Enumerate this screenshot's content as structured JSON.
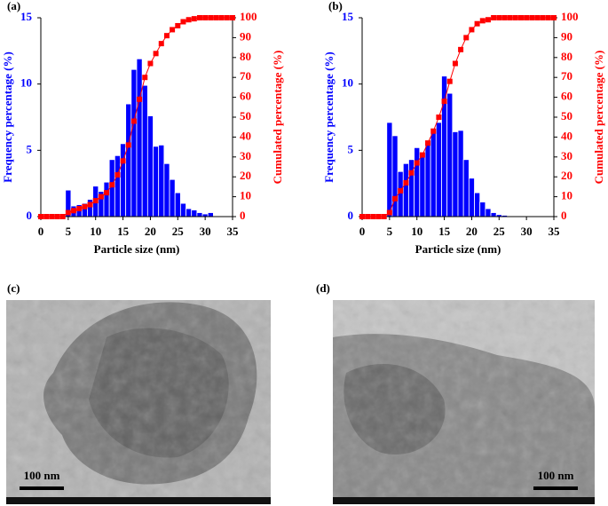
{
  "chart_data": [
    {
      "type": "histogram",
      "panel_label": "(a)",
      "xlabel": "Particle size (nm)",
      "ylabel": "Frequency percentage (%)",
      "y2label": "Cumulated percentage (%)",
      "bins": [
        4.5,
        5.5,
        6.5,
        7.5,
        8.5,
        9.5,
        10.5,
        11.5,
        12.5,
        13.5,
        14.5,
        15.5,
        16.5,
        17.5,
        18.5,
        19.5,
        20.5,
        21.5,
        22.5,
        23.5,
        24.5,
        25.5,
        26.5,
        27.5,
        28.5,
        29.5,
        30.5,
        31.5
      ],
      "values": [
        2.0,
        0.8,
        0.9,
        1.0,
        1.3,
        2.3,
        1.9,
        2.6,
        4.3,
        4.6,
        5.5,
        8.5,
        11.1,
        11.9,
        9.9,
        7.6,
        5.3,
        5.4,
        4.0,
        2.8,
        1.8,
        1.0,
        0.6,
        0.5,
        0.3,
        0.2,
        0.3
      ],
      "color": "#0000ff",
      "cumulative": {
        "axis": "y2",
        "color": "#ff0000",
        "x": [
          0,
          1,
          2,
          3,
          4,
          5,
          6,
          7,
          8,
          9,
          10,
          11,
          12,
          13,
          14,
          15,
          16,
          17,
          18,
          19,
          20,
          21,
          22,
          23,
          24,
          25,
          26,
          27,
          28,
          29,
          30,
          31,
          32,
          33,
          34,
          35
        ],
        "values": [
          0,
          0,
          0,
          0,
          0,
          2,
          3,
          4,
          5,
          6,
          8,
          10,
          12,
          16,
          21,
          28,
          36,
          48,
          59,
          70,
          77,
          82,
          87,
          91,
          94,
          96,
          98,
          99,
          99.5,
          100,
          100,
          100,
          100,
          100,
          100,
          100
        ]
      },
      "xlim": [
        0,
        35
      ],
      "xticks": [
        0,
        5,
        10,
        15,
        20,
        25,
        30,
        35
      ],
      "ylim": [
        0,
        15
      ],
      "yticks": [
        0,
        5,
        10,
        15
      ],
      "y2lim": [
        0,
        100
      ],
      "y2ticks": [
        0,
        10,
        20,
        30,
        40,
        50,
        60,
        70,
        80,
        90,
        100
      ]
    },
    {
      "type": "histogram",
      "panel_label": "(b)",
      "xlabel": "Particle size (nm)",
      "ylabel": "Frequency percentage (%)",
      "y2label": "Cumulated percentage (%)",
      "bins": [
        4.5,
        5.5,
        6.5,
        7.5,
        8.5,
        9.5,
        10.5,
        11.5,
        12.5,
        13.5,
        14.5,
        15.5,
        16.5,
        17.5,
        18.5,
        19.5,
        20.5,
        21.5,
        22.5,
        23.5,
        24.5,
        25.5,
        26.5
      ],
      "values": [
        7.1,
        6.1,
        3.4,
        4.0,
        4.3,
        5.2,
        4.6,
        5.6,
        6.6,
        7.1,
        10.6,
        9.3,
        6.4,
        6.5,
        4.3,
        2.9,
        1.8,
        1.1,
        0.6,
        0.3,
        0.15,
        0.1
      ],
      "color": "#0000ff",
      "cumulative": {
        "axis": "y2",
        "color": "#ff0000",
        "x": [
          0,
          1,
          2,
          3,
          4,
          5,
          6,
          7,
          8,
          9,
          10,
          11,
          12,
          13,
          14,
          15,
          16,
          17,
          18,
          19,
          20,
          21,
          22,
          23,
          24,
          25,
          26,
          27,
          28,
          29,
          30,
          31,
          32,
          33,
          34,
          35
        ],
        "values": [
          0,
          0,
          0,
          0,
          0,
          2,
          9,
          13,
          17,
          22,
          27,
          31,
          37,
          43,
          50,
          58,
          68,
          77,
          84,
          90,
          94,
          97,
          98.5,
          99,
          100,
          100,
          100,
          100,
          100,
          100,
          100,
          100,
          100,
          100,
          100,
          100
        ]
      },
      "xlim": [
        0,
        35
      ],
      "xticks": [
        0,
        5,
        10,
        15,
        20,
        25,
        30,
        35
      ],
      "ylim": [
        0,
        15
      ],
      "yticks": [
        0,
        5,
        10,
        15
      ],
      "y2lim": [
        0,
        100
      ],
      "y2ticks": [
        0,
        10,
        20,
        30,
        40,
        50,
        60,
        70,
        80,
        90,
        100
      ]
    }
  ],
  "images": [
    {
      "panel_label": "(c)",
      "scale_bar": "100 nm"
    },
    {
      "panel_label": "(d)",
      "scale_bar": "100 nm"
    }
  ]
}
